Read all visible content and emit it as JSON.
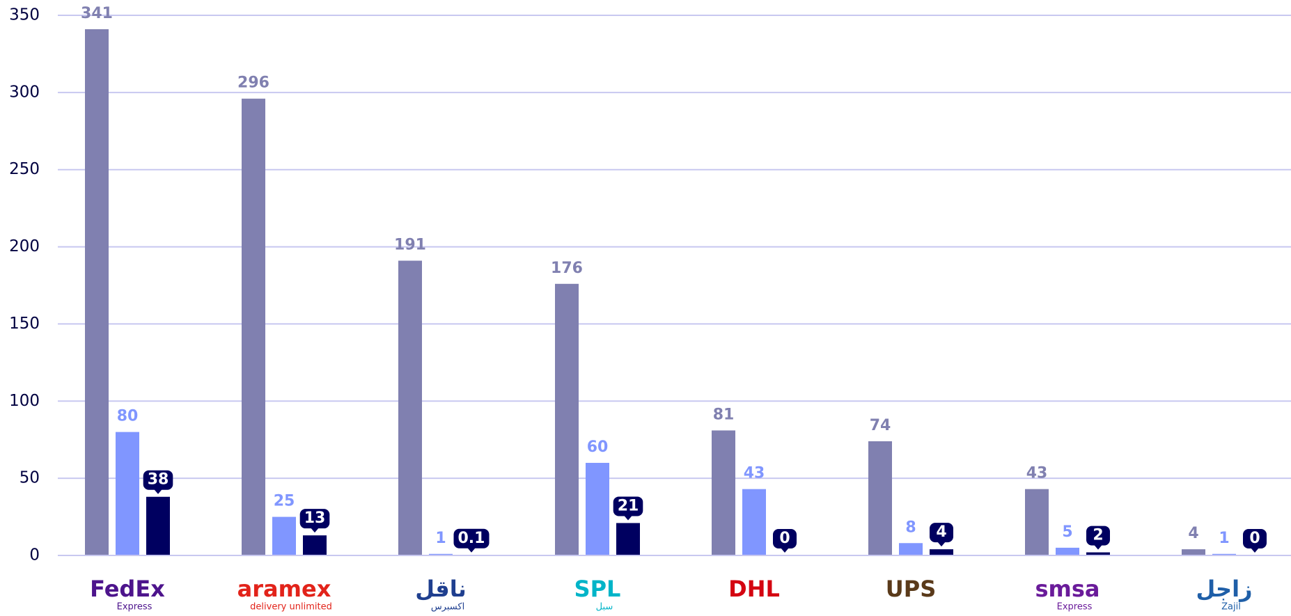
{
  "chart_data": {
    "type": "bar",
    "categories": [
      "FedEx",
      "aramex",
      "ناقل",
      "SPL",
      "DHL",
      "UPS",
      "smsa",
      "زاجل"
    ],
    "category_sublabels": [
      "Express",
      "delivery unlimited",
      "اكسبرس",
      "سبل",
      null,
      null,
      "Express",
      "Zajil"
    ],
    "category_colors": [
      "#4d148c",
      "#e2231a",
      "#1f3f8f",
      "#00b4c8",
      "#d40511",
      "#5a3a1a",
      "#6a1b9a",
      "#1f5fa8"
    ],
    "series": [
      {
        "color": "#8080b0",
        "values": [
          341,
          296,
          191,
          176,
          81,
          74,
          43,
          4
        ]
      },
      {
        "color": "#8096ff",
        "values": [
          80,
          25,
          1,
          60,
          43,
          8,
          5,
          1
        ]
      },
      {
        "color": "#000060",
        "values": [
          38,
          13,
          0.1,
          21,
          0,
          4,
          2,
          0
        ]
      }
    ],
    "ylim": [
      0,
      350
    ],
    "yticks": [
      0,
      50,
      100,
      150,
      200,
      250,
      300,
      350
    ],
    "grid": true
  }
}
